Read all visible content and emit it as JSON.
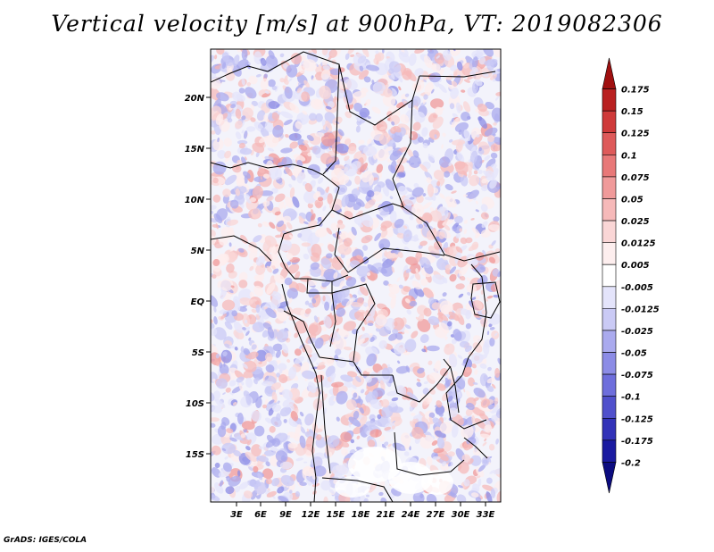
{
  "title": "Vertical velocity [m/s] at 900hPa, VT: 2019082306",
  "footer": "GrADS: IGES/COLA",
  "map": {
    "lat_labels": [
      "20N",
      "15N",
      "10N",
      "5N",
      "EQ",
      "5S",
      "10S",
      "15S"
    ],
    "lon_labels": [
      "3E",
      "6E",
      "9E",
      "12E",
      "15E",
      "18E",
      "21E",
      "24E",
      "27E",
      "30E",
      "33E"
    ]
  },
  "colorbar": {
    "labels": [
      "0.175",
      "0.15",
      "0.125",
      "0.1",
      "0.075",
      "0.05",
      "0.025",
      "0.0125",
      "0.005",
      "-0.005",
      "-0.0125",
      "-0.025",
      "-0.05",
      "-0.075",
      "-0.1",
      "-0.125",
      "-0.175",
      "-0.2"
    ],
    "colors": [
      "#a01010",
      "#b92020",
      "#cf3a3a",
      "#de5a5a",
      "#e87878",
      "#f09a9a",
      "#f6b9b9",
      "#fad6d6",
      "#fdeeee",
      "#ffffff",
      "#e4e4fb",
      "#cacaf5",
      "#aaaaee",
      "#8c8ce6",
      "#6e6edc",
      "#5050cc",
      "#3232b8",
      "#1a1aa0",
      "#0c0c80"
    ]
  }
}
